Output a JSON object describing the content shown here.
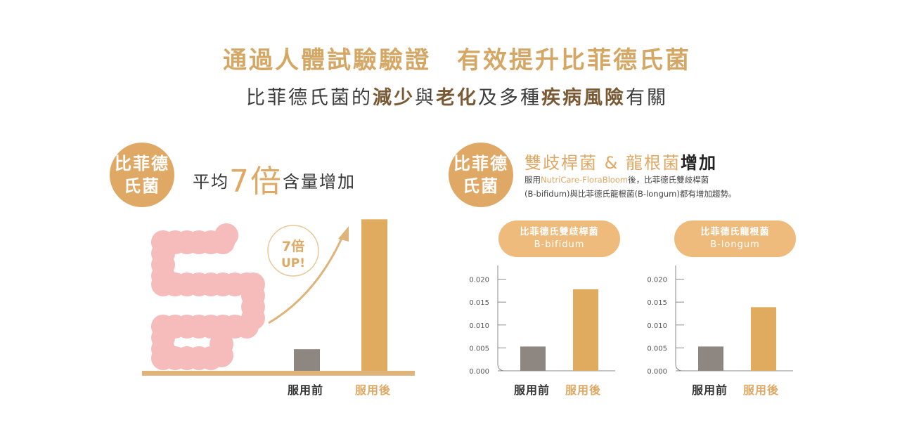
{
  "header": {
    "title": "通過人體試驗驗證　有效提升比菲德氏菌",
    "subtitle_parts": [
      {
        "text": "比菲德氏菌的",
        "hl": false
      },
      {
        "text": "減少",
        "hl": true
      },
      {
        "text": "與",
        "hl": false
      },
      {
        "text": "老化",
        "hl": true
      },
      {
        "text": "及多種",
        "hl": false
      },
      {
        "text": "疾病風險",
        "hl": true
      },
      {
        "text": "有關",
        "hl": false
      }
    ]
  },
  "left_panel": {
    "badge_line1": "比菲德",
    "badge_line2": "氏菌",
    "headline_pre": "平均",
    "headline_big": "7倍",
    "headline_post": "含量增加",
    "bubble_line1": "7倍",
    "bubble_line2": "UP!"
  },
  "right_panel": {
    "badge_line1": "比菲德",
    "badge_line2": "氏菌",
    "title_a": "雙歧桿菌 & 龍根菌",
    "title_b": "增加",
    "desc_pre": "服用",
    "desc_brand": "NutriCare-FloraBloom",
    "desc_post1": "後，比菲德氏雙歧桿菌",
    "desc_line2": "(B-bifidum)與比菲德氏龍根菌(B-longum)都有增加趨勢。"
  },
  "colors": {
    "accent": "#dfa864",
    "before_bar": "#8e8680",
    "after_bar": "#e0ab5f",
    "intestine": "#f6bcbc"
  },
  "chart_data": [
    {
      "type": "bar",
      "title": "",
      "categories": [
        "服用前",
        "服用後"
      ],
      "values": [
        1,
        7
      ],
      "ylim": [
        0,
        7.4
      ],
      "annotation": "7倍 UP!",
      "grid": false
    },
    {
      "type": "bar",
      "title": "比菲德氏雙歧桿菌",
      "subtitle": "B-bifidum",
      "categories": [
        "服用前",
        "服用後"
      ],
      "values": [
        0.0053,
        0.0178
      ],
      "ylim": [
        0,
        0.023
      ],
      "yticks": [
        "0.000",
        "0.005",
        "0.010",
        "0.015",
        "0.020"
      ],
      "grid": false
    },
    {
      "type": "bar",
      "title": "比菲德氏龍根菌",
      "subtitle": "B-longum",
      "categories": [
        "服用前",
        "服用後"
      ],
      "values": [
        0.0053,
        0.0139
      ],
      "ylim": [
        0,
        0.023
      ],
      "yticks": [
        "0.000",
        "0.005",
        "0.010",
        "0.015",
        "0.020"
      ],
      "grid": false
    }
  ]
}
